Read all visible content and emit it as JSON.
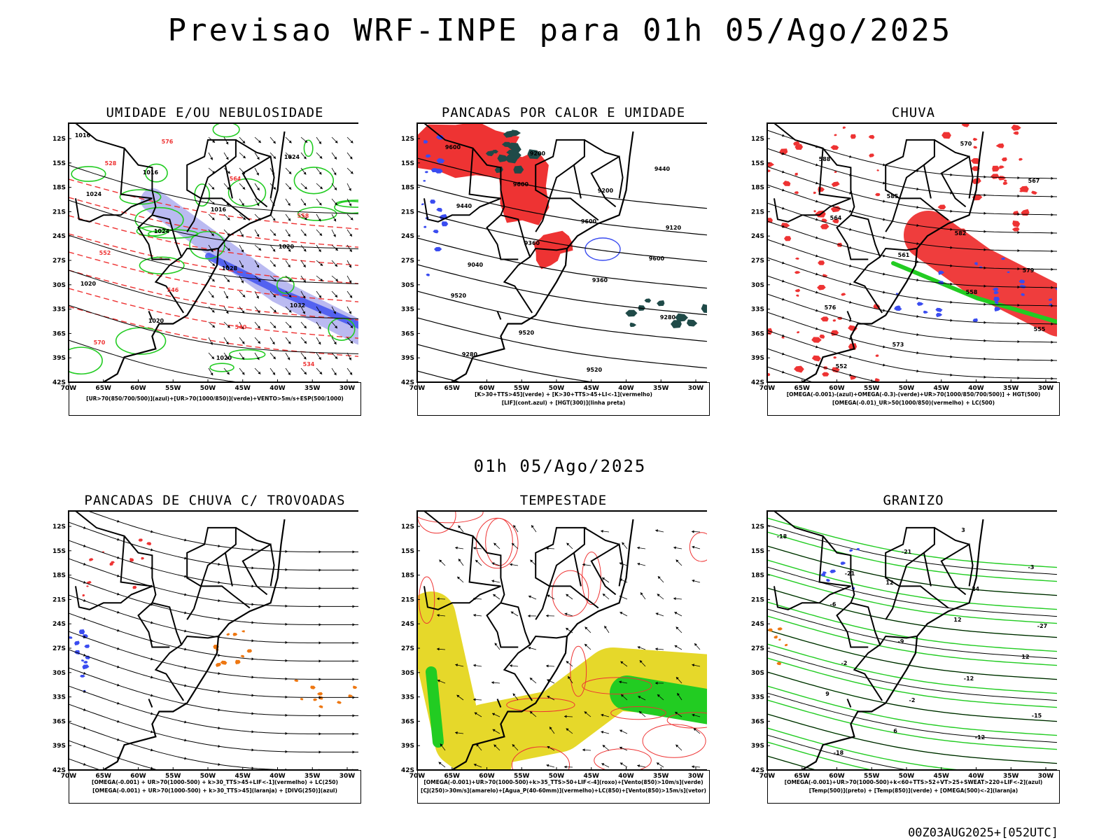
{
  "title": "Previsao WRF-INPE  para 01h 05/Ago/2025",
  "middle_title": "01h 05/Ago/2025",
  "footer": "00Z03AUG2025+[052UTC]",
  "axes": {
    "lat_ticks": [
      "12S",
      "15S",
      "18S",
      "21S",
      "24S",
      "27S",
      "30S",
      "33S",
      "36S",
      "39S",
      "42S"
    ],
    "lon_ticks": [
      "70W",
      "65W",
      "60W",
      "55W",
      "50W",
      "45W",
      "40W",
      "35W",
      "30W"
    ]
  },
  "colors": {
    "blue": "#3a4cf0",
    "green": "#22cc22",
    "red": "#ee3333",
    "orange": "#ee7711",
    "yellow": "#e6d82a",
    "lavender": "#b3b3f0",
    "darkteal": "#1f4a48",
    "black": "#000000"
  },
  "panels": [
    {
      "id": "umidade",
      "title": "UMIDADE E/OU NEBULOSIDADE",
      "legend": [
        "[UR>70(850/700/500)](azul)+[UR>70(1000/850)](verde)+VENTO>5m/s+ESP(500/1000)"
      ],
      "contour_labels": [
        "1016",
        "1016",
        "1016",
        "1020",
        "1020",
        "1020",
        "1020",
        "1024",
        "1024",
        "1024",
        "1028",
        "1032",
        "570",
        "576",
        "564",
        "558",
        "552",
        "546",
        "540",
        "534",
        "528"
      ]
    },
    {
      "id": "pancadas-calor",
      "title": "PANCADAS POR CALOR E UMIDADE",
      "legend": [
        "[K>30+TTS>45](verde) + [K>30+TTS>45+LI<-1](vermelho)",
        "[LIF](cont.azul) + [HGT(300)](linha preta)"
      ],
      "contour_labels": [
        "9600",
        "9600",
        "9600",
        "9600",
        "9520",
        "9520",
        "9520",
        "9440",
        "9440",
        "9360",
        "9360",
        "9280",
        "9280",
        "9200",
        "9200",
        "9120",
        "9040"
      ]
    },
    {
      "id": "chuva",
      "title": "CHUVA",
      "legend": [
        "[OMEGA(-0.001)-(azul)+OMEGA(-0.3)-(verde)+UR>70(1000/850/700/500)] + HGT(500)",
        "[OMEGA(-0.01)_UR>50(1000/850)(vermelho) + LC(500)"
      ],
      "contour_labels": [
        "588",
        "585",
        "582",
        "579",
        "576",
        "573",
        "570",
        "567",
        "564",
        "561",
        "558",
        "555",
        "552"
      ]
    },
    {
      "id": "pancadas-trovoadas",
      "title": "PANCADAS DE CHUVA C/ TROVOADAS",
      "legend": [
        "[OMEGA(-0.001) + UR>70(1000-500) + k>30_TTS>45+LIF<-1](vermelho) + LC(250)",
        "[OMEGA(-0.001) + UR>70(1000-500) + k>30_TTS>45](laranja) + [DIVG(250)](azul)"
      ],
      "contour_labels": []
    },
    {
      "id": "tempestade",
      "title": "TEMPESTADE",
      "legend": [
        "[OMEGA(-0.001)+UR>70(1000-500)+k>35_TTS>50+LIF<-4](roxo)+[Vento(850)>10m/s](verde)",
        "[CJ(250)>30m/s](amarelo)+[Agua_P(40-60mm)](vermelho)+LC(850)+[Vento(850)>15m/s](vetor)"
      ],
      "contour_labels": []
    },
    {
      "id": "granizo",
      "title": "GRANIZO",
      "legend": [
        "[OMEGA(-0.001)+UR>70(1000-500)+k<60+TTS>52+VT>25+SWEAT>220+LIF<-2](azul)",
        "[Temp(500)](preto) + [Temp(850)](verde) + [OMEGA(500)<-2](laranja)"
      ],
      "contour_labels": [
        "12",
        "12",
        "12",
        "9",
        "6",
        "3",
        "-3",
        "-6",
        "-9",
        "-12",
        "-15",
        "-18",
        "-21",
        "-24",
        "-27",
        "-2",
        "-2",
        "-12",
        "-18",
        "-21"
      ]
    }
  ]
}
